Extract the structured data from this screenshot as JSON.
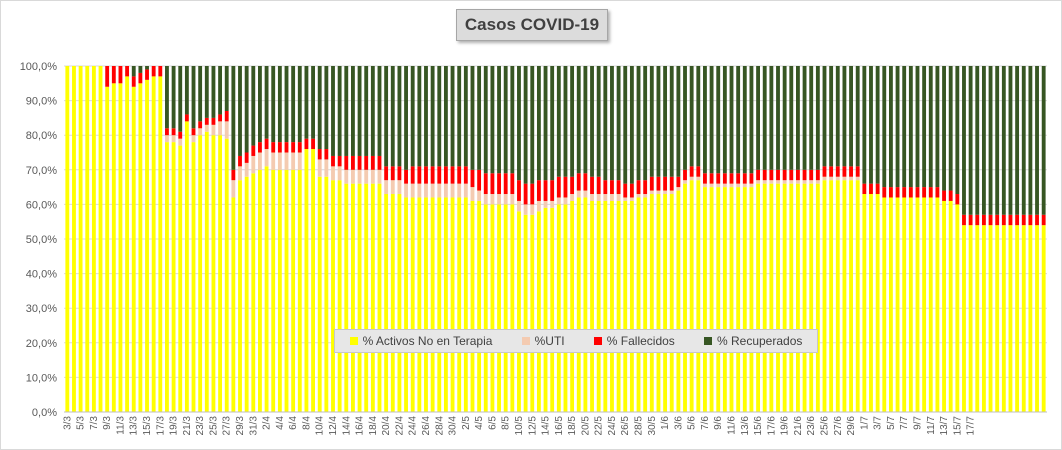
{
  "chart_data": {
    "type": "bar",
    "stacked": "percent",
    "title": "Casos  COVID-19",
    "xlabel": "",
    "ylabel": "",
    "ylim": [
      0,
      100
    ],
    "y_ticks": [
      "0,0%",
      "10,0%",
      "20,0%",
      "30,0%",
      "40,0%",
      "50,0%",
      "60,0%",
      "70,0%",
      "80,0%",
      "90,0%",
      "100,0%"
    ],
    "x_tick_labels": [
      "3/3",
      "5/3",
      "7/3",
      "9/3",
      "11/3",
      "13/3",
      "15/3",
      "17/3",
      "19/3",
      "21/3",
      "23/3",
      "25/3",
      "27/3",
      "29/3",
      "31/3",
      "2/4",
      "4/4",
      "6/4",
      "8/4",
      "10/4",
      "12/4",
      "14/4",
      "16/4",
      "18/4",
      "20/4",
      "22/4",
      "24/4",
      "26/4",
      "28/4",
      "30/4",
      "2/5",
      "4/5",
      "6/5",
      "8/5",
      "10/5",
      "12/5",
      "14/5",
      "16/5",
      "18/5",
      "20/5",
      "22/5",
      "24/5",
      "26/5",
      "28/5",
      "30/5",
      "1/6",
      "3/6",
      "5/6",
      "7/6",
      "9/6",
      "11/6",
      "13/6",
      "15/6",
      "17/6",
      "19/6",
      "21/6",
      "23/6",
      "25/6",
      "27/6",
      "29/6",
      "1/7",
      "3/7",
      "5/7",
      "7/7",
      "9/7",
      "11/7",
      "13/7",
      "15/7",
      "17/7"
    ],
    "legend_position": "bottom-center",
    "series": [
      {
        "name": "% Activos No en Terapia",
        "color": "#ffff00",
        "values": [
          100,
          100,
          100,
          100,
          100,
          100,
          94,
          95,
          95,
          97,
          94,
          95,
          96,
          97,
          97,
          78,
          78,
          77,
          84,
          78,
          80,
          81,
          80,
          80,
          79,
          62,
          67,
          68,
          69,
          70,
          71,
          70,
          70,
          70,
          70,
          70,
          76,
          76,
          68,
          68,
          67,
          67,
          66,
          66,
          66,
          66,
          66,
          66,
          63,
          63,
          63,
          62,
          62,
          62,
          62,
          62,
          62,
          62,
          62,
          62,
          62,
          61,
          61,
          60,
          60,
          60,
          60,
          60,
          58,
          57,
          57,
          58,
          59,
          59,
          60,
          60,
          61,
          62,
          62,
          61,
          61,
          61,
          61,
          61,
          61,
          61,
          62,
          62,
          63,
          63,
          63,
          63,
          64,
          66,
          67,
          67,
          65,
          65,
          65,
          65,
          65,
          65,
          65,
          65,
          66,
          66,
          66,
          66,
          66,
          66,
          66,
          66,
          66,
          66,
          67,
          67,
          67,
          67,
          67,
          67,
          63,
          63,
          63,
          62,
          62,
          62,
          62,
          62,
          62,
          62,
          62,
          62,
          61,
          61,
          60,
          54,
          54,
          54,
          54,
          54,
          54,
          54,
          54,
          54,
          54,
          54,
          54,
          54
        ]
      },
      {
        "name": "%UTI",
        "color": "#f4cbb1",
        "values": [
          0,
          0,
          0,
          0,
          0,
          0,
          0,
          0,
          0,
          0,
          0,
          0,
          0,
          0,
          0,
          2,
          2,
          2,
          0,
          2,
          2,
          2,
          3,
          4,
          5,
          5,
          4,
          4,
          5,
          5,
          5,
          5,
          5,
          5,
          5,
          5,
          0,
          0,
          5,
          5,
          4,
          4,
          4,
          4,
          4,
          4,
          4,
          4,
          4,
          4,
          4,
          4,
          4,
          4,
          4,
          4,
          4,
          4,
          4,
          4,
          4,
          4,
          3,
          3,
          3,
          3,
          3,
          3,
          3,
          3,
          3,
          3,
          2,
          2,
          2,
          2,
          2,
          2,
          2,
          2,
          2,
          2,
          2,
          2,
          1,
          1,
          1,
          1,
          1,
          1,
          1,
          1,
          1,
          1,
          1,
          1,
          1,
          1,
          1,
          1,
          1,
          1,
          1,
          1,
          1,
          1,
          1,
          1,
          1,
          1,
          1,
          1,
          1,
          1,
          1,
          1,
          1,
          1,
          1,
          1,
          0,
          0,
          0,
          0,
          0,
          0,
          0,
          0,
          0,
          0,
          0,
          0,
          0,
          0,
          0,
          0,
          0,
          0,
          0,
          0,
          0,
          0,
          0,
          0,
          0,
          0,
          0,
          0
        ]
      },
      {
        "name": "% Fallecidos",
        "color": "#ff0000",
        "values": [
          0,
          0,
          0,
          0,
          0,
          0,
          6,
          5,
          5,
          3,
          3,
          3,
          3,
          3,
          3,
          2,
          2,
          2,
          2,
          2,
          2,
          2,
          2,
          2,
          3,
          3,
          3,
          3,
          3,
          3,
          3,
          3,
          3,
          3,
          3,
          3,
          3,
          3,
          3,
          3,
          3,
          3,
          4,
          4,
          4,
          4,
          4,
          4,
          4,
          4,
          4,
          4,
          5,
          5,
          5,
          5,
          5,
          5,
          5,
          5,
          5,
          5,
          6,
          6,
          6,
          6,
          6,
          6,
          6,
          6,
          6,
          6,
          6,
          6,
          6,
          6,
          5,
          5,
          5,
          5,
          5,
          4,
          4,
          4,
          4,
          4,
          4,
          4,
          4,
          4,
          4,
          4,
          3,
          3,
          3,
          3,
          3,
          3,
          3,
          3,
          3,
          3,
          3,
          3,
          3,
          3,
          3,
          3,
          3,
          3,
          3,
          3,
          3,
          3,
          3,
          3,
          3,
          3,
          3,
          3,
          3,
          3,
          3,
          3,
          3,
          3,
          3,
          3,
          3,
          3,
          3,
          3,
          3,
          3,
          3,
          3,
          3,
          3,
          3,
          3,
          3,
          3,
          3,
          3,
          3,
          3,
          3,
          3
        ]
      },
      {
        "name": "% Recuperados",
        "color": "#375623",
        "values": [
          0,
          0,
          0,
          0,
          0,
          0,
          0,
          0,
          0,
          0,
          3,
          2,
          1,
          0,
          0,
          18,
          18,
          19,
          14,
          18,
          16,
          15,
          15,
          14,
          13,
          30,
          26,
          25,
          23,
          22,
          21,
          22,
          22,
          22,
          22,
          22,
          21,
          21,
          24,
          24,
          26,
          26,
          26,
          26,
          26,
          26,
          26,
          26,
          29,
          29,
          29,
          30,
          29,
          29,
          29,
          29,
          29,
          29,
          29,
          29,
          29,
          30,
          30,
          31,
          31,
          31,
          31,
          31,
          33,
          34,
          34,
          33,
          33,
          33,
          32,
          32,
          32,
          31,
          31,
          32,
          32,
          33,
          33,
          33,
          34,
          34,
          33,
          33,
          32,
          32,
          32,
          32,
          32,
          30,
          29,
          29,
          31,
          31,
          31,
          31,
          31,
          31,
          31,
          31,
          30,
          30,
          30,
          30,
          30,
          30,
          30,
          30,
          30,
          30,
          29,
          29,
          29,
          29,
          29,
          29,
          34,
          34,
          34,
          35,
          35,
          35,
          35,
          35,
          35,
          35,
          35,
          35,
          36,
          36,
          37,
          43,
          43,
          43,
          43,
          43,
          43,
          43,
          43,
          43,
          43,
          43,
          43,
          43
        ]
      }
    ]
  }
}
